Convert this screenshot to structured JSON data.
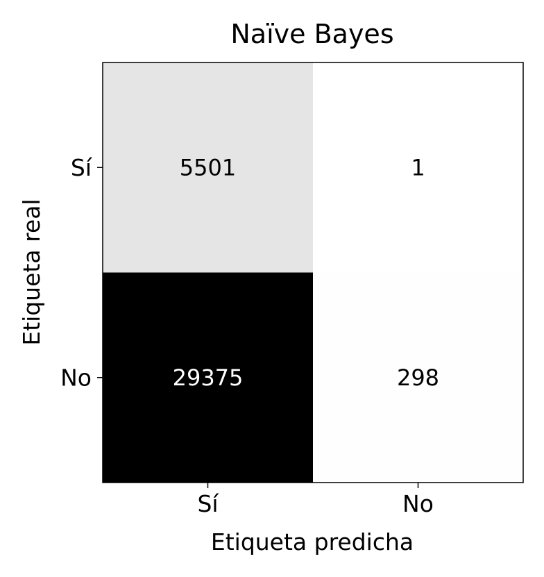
{
  "chart_data": {
    "type": "heatmap",
    "title": "Naïve Bayes",
    "xlabel": "Etiqueta predicha",
    "ylabel": "Etiqueta real",
    "x_categories": [
      "Sí",
      "No"
    ],
    "y_categories": [
      "Sí",
      "No"
    ],
    "values": [
      [
        5501,
        1
      ],
      [
        29375,
        298
      ]
    ],
    "colormap": "Greys",
    "grid": false
  }
}
